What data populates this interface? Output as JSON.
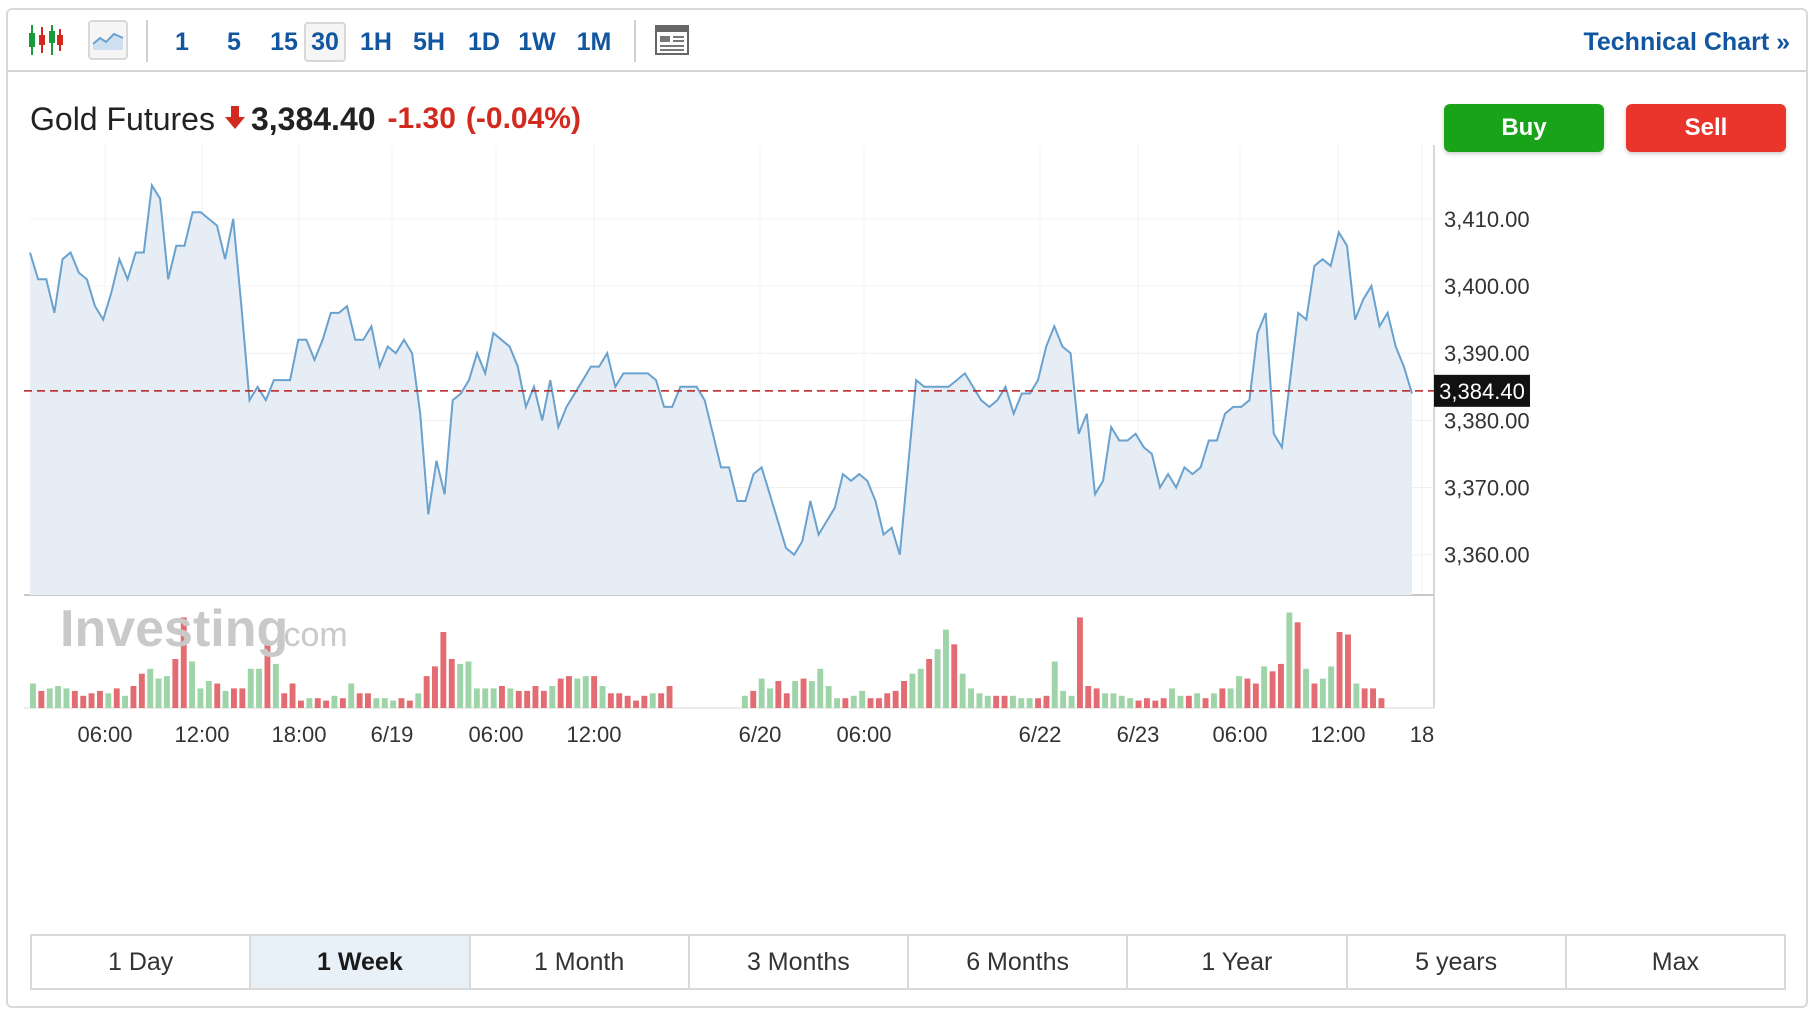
{
  "toolbar": {
    "intervals": [
      "1",
      "5",
      "15",
      "30",
      "1H",
      "5H",
      "1D",
      "1W",
      "1M"
    ],
    "active_interval": "30",
    "technical_chart_label": "Technical Chart »"
  },
  "quote": {
    "name": "Gold Futures",
    "price": "3,384.40",
    "change": "-1.30",
    "change_pct": "(-0.04%)",
    "direction": "down"
  },
  "actions": {
    "buy_label": "Buy",
    "sell_label": "Sell"
  },
  "watermark": {
    "brand": "Investing",
    "suffix": ".com"
  },
  "ranges": {
    "items": [
      "1 Day",
      "1 Week",
      "1 Month",
      "3 Months",
      "6 Months",
      "1 Year",
      "5 years",
      "Max"
    ],
    "active": "1 Week"
  },
  "colors": {
    "line": "#6aa2cf",
    "area": "#e6edf5",
    "last_price_line": "#b71c1c",
    "vol_up": "#9fd4a8",
    "vol_down": "#e26c72",
    "link": "#1256a0",
    "buy": "#18a318",
    "sell": "#e9352c"
  },
  "chart_data": {
    "type": "line",
    "title": "",
    "ylabel": "",
    "ylim": [
      3354,
      3421
    ],
    "y_ticks": [
      "3,410.00",
      "3,400.00",
      "3,390.00",
      "3,380.00",
      "3,370.00",
      "3,360.00"
    ],
    "y_tick_values": [
      3410,
      3400,
      3390,
      3380,
      3370,
      3360
    ],
    "last_price": 3384.4,
    "last_price_label": "3,384.40",
    "x_ticks": [
      "06:00",
      "12:00",
      "18:00",
      "6/19",
      "06:00",
      "12:00",
      "6/20",
      "06:00",
      "6/22",
      "6/23",
      "06:00",
      "12:00",
      "18"
    ],
    "series": [
      {
        "values": [
          3405,
          3401,
          3401,
          3396,
          3404,
          3405,
          3402,
          3401,
          3397,
          3395,
          3399,
          3404,
          3401,
          3405,
          3405,
          3415,
          3413,
          3401,
          3406,
          3406,
          3411,
          3411,
          3410,
          3409,
          3404,
          3410,
          3397,
          3383,
          3385,
          3383,
          3386,
          3386,
          3386,
          3392,
          3392,
          3389,
          3392,
          3396,
          3396,
          3397,
          3392,
          3392,
          3394,
          3388,
          3391,
          3390,
          3392,
          3390,
          3381,
          3366,
          3374,
          3369,
          3383,
          3384,
          3386,
          3390,
          3387,
          3393,
          3392,
          3391,
          3388,
          3382,
          3385,
          3380,
          3386,
          3379,
          3382,
          3384,
          3386,
          3388,
          3388,
          3390,
          3385,
          3387,
          3387,
          3387,
          3387,
          3386,
          3382,
          3382,
          3385,
          3385,
          3385,
          3383,
          3378,
          3373,
          3373,
          3368,
          3368,
          3372,
          3373,
          3369,
          3365,
          3361,
          3360,
          3362,
          3368,
          3363,
          3365,
          3367,
          3372,
          3371,
          3372,
          3371,
          3368,
          3363,
          3364,
          3360,
          3373,
          3386,
          3385,
          3385,
          3385,
          3385,
          3386,
          3387,
          3385,
          3383,
          3382,
          3383,
          3385,
          3381,
          3384,
          3384,
          3386,
          3391,
          3394,
          3391,
          3390,
          3378,
          3381,
          3369,
          3371,
          3379,
          3377,
          3377,
          3378,
          3376,
          3375,
          3370,
          3372,
          3370,
          3373,
          3372,
          3373,
          3377,
          3377,
          3381,
          3382,
          3382,
          3383,
          3393,
          3396,
          3378,
          3376,
          3386,
          3396,
          3395,
          3403,
          3404,
          3403,
          3408,
          3406,
          3395,
          3398,
          3400,
          3394,
          3396,
          3391,
          3388,
          3384
        ]
      }
    ],
    "volume": [
      [
        10,
        1
      ],
      [
        7,
        0
      ],
      [
        8,
        1
      ],
      [
        9,
        1
      ],
      [
        8,
        1
      ],
      [
        7,
        0
      ],
      [
        5,
        0
      ],
      [
        6,
        0
      ],
      [
        7,
        0
      ],
      [
        6,
        1
      ],
      [
        8,
        0
      ],
      [
        5,
        1
      ],
      [
        9,
        0
      ],
      [
        14,
        0
      ],
      [
        16,
        1
      ],
      [
        12,
        1
      ],
      [
        13,
        1
      ],
      [
        20,
        0
      ],
      [
        37,
        0
      ],
      [
        19,
        1
      ],
      [
        8,
        1
      ],
      [
        11,
        1
      ],
      [
        10,
        0
      ],
      [
        7,
        1
      ],
      [
        8,
        0
      ],
      [
        8,
        0
      ],
      [
        16,
        1
      ],
      [
        16,
        1
      ],
      [
        27,
        0
      ],
      [
        18,
        1
      ],
      [
        6,
        0
      ],
      [
        10,
        0
      ],
      [
        3,
        0
      ],
      [
        4,
        1
      ],
      [
        4,
        0
      ],
      [
        3,
        0
      ],
      [
        5,
        1
      ],
      [
        4,
        0
      ],
      [
        10,
        1
      ],
      [
        6,
        0
      ],
      [
        6,
        0
      ],
      [
        4,
        1
      ],
      [
        4,
        1
      ],
      [
        3,
        1
      ],
      [
        4,
        0
      ],
      [
        3,
        0
      ],
      [
        6,
        1
      ],
      [
        13,
        0
      ],
      [
        17,
        0
      ],
      [
        31,
        0
      ],
      [
        20,
        0
      ],
      [
        18,
        1
      ],
      [
        19,
        1
      ],
      [
        8,
        1
      ],
      [
        8,
        1
      ],
      [
        8,
        1
      ],
      [
        9,
        0
      ],
      [
        8,
        1
      ],
      [
        7,
        0
      ],
      [
        7,
        0
      ],
      [
        9,
        0
      ],
      [
        7,
        0
      ],
      [
        9,
        1
      ],
      [
        12,
        0
      ],
      [
        13,
        0
      ],
      [
        12,
        1
      ],
      [
        13,
        1
      ],
      [
        13,
        0
      ],
      [
        9,
        1
      ],
      [
        6,
        0
      ],
      [
        6,
        0
      ],
      [
        5,
        0
      ],
      [
        3,
        0
      ],
      [
        5,
        0
      ],
      [
        6,
        1
      ],
      [
        6,
        0
      ],
      [
        9,
        0
      ],
      [
        5,
        1
      ],
      [
        7,
        0
      ],
      [
        12,
        1
      ],
      [
        8,
        1
      ],
      [
        11,
        0
      ],
      [
        6,
        0
      ],
      [
        11,
        1
      ],
      [
        12,
        0
      ],
      [
        11,
        1
      ],
      [
        16,
        1
      ],
      [
        9,
        1
      ],
      [
        4,
        1
      ],
      [
        4,
        0
      ],
      [
        5,
        1
      ],
      [
        7,
        1
      ],
      [
        4,
        0
      ],
      [
        4,
        0
      ],
      [
        6,
        0
      ],
      [
        7,
        0
      ],
      [
        11,
        0
      ],
      [
        14,
        1
      ],
      [
        16,
        1
      ],
      [
        20,
        0
      ],
      [
        24,
        1
      ],
      [
        32,
        1
      ],
      [
        26,
        0
      ],
      [
        14,
        1
      ],
      [
        8,
        1
      ],
      [
        6,
        1
      ],
      [
        5,
        1
      ],
      [
        5,
        0
      ],
      [
        5,
        0
      ],
      [
        5,
        1
      ],
      [
        4,
        1
      ],
      [
        4,
        1
      ],
      [
        4,
        0
      ],
      [
        5,
        0
      ],
      [
        19,
        1
      ],
      [
        7,
        1
      ],
      [
        5,
        1
      ],
      [
        37,
        0
      ],
      [
        9,
        0
      ],
      [
        8,
        0
      ],
      [
        6,
        1
      ],
      [
        6,
        1
      ],
      [
        5,
        1
      ],
      [
        4,
        1
      ],
      [
        3,
        0
      ],
      [
        4,
        0
      ],
      [
        3,
        0
      ],
      [
        4,
        0
      ],
      [
        8,
        1
      ],
      [
        5,
        1
      ],
      [
        5,
        0
      ],
      [
        6,
        1
      ],
      [
        4,
        0
      ],
      [
        6,
        1
      ],
      [
        8,
        0
      ],
      [
        8,
        1
      ],
      [
        13,
        1
      ],
      [
        12,
        0
      ],
      [
        10,
        0
      ],
      [
        17,
        1
      ],
      [
        15,
        0
      ],
      [
        18,
        0
      ],
      [
        39,
        1
      ],
      [
        35,
        0
      ],
      [
        16,
        1
      ],
      [
        10,
        0
      ],
      [
        12,
        1
      ],
      [
        17,
        1
      ],
      [
        31,
        0
      ],
      [
        30,
        0
      ],
      [
        10,
        1
      ],
      [
        8,
        0
      ],
      [
        8,
        0
      ],
      [
        4,
        0
      ]
    ],
    "volume_break": [
      77,
      80
    ]
  }
}
